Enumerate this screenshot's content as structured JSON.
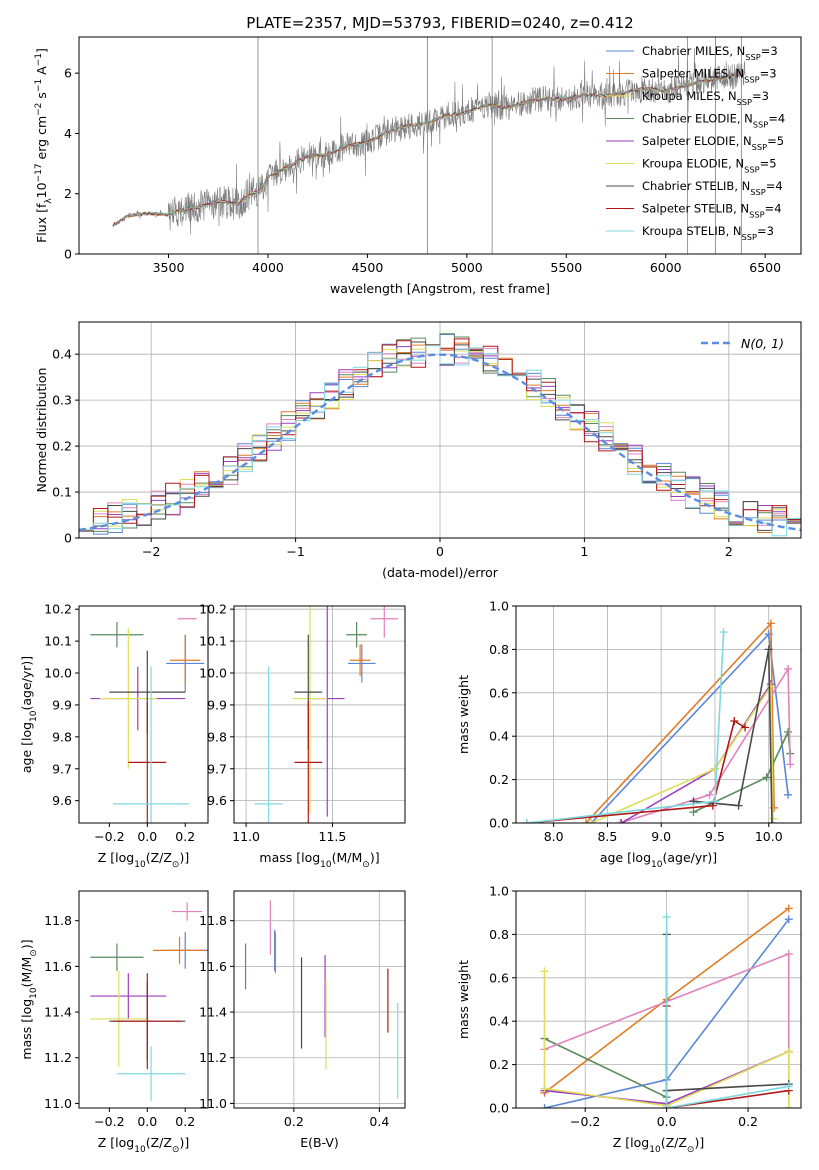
{
  "figure": {
    "title": "PLATE=2357, MJD=53793, FIBERID=0240, z=0.412"
  },
  "colors": {
    "c1": "#5b86d8",
    "c2": "#e07b26",
    "c3": "#5a8a5e",
    "c4": "#e083bd",
    "c5": "#9b3fbf",
    "c6": "#dede5a",
    "c7": "#4a4a4a",
    "c8": "#b01818",
    "c9": "#7fd8e0",
    "grid": "#b0b0b0",
    "spec": "#7f7f7f",
    "gauss": "#5b8ee0"
  },
  "chart_data": [
    {
      "id": "spectrum",
      "type": "line",
      "xlabel": "wavelength [Angstrom, rest frame]",
      "ylabel": "Flux [f$_\\lambda$10$^{-17}$ erg cm$^{-2}$ s$^{-1}$ A$^{-1}$]",
      "xlim": [
        3050,
        6680
      ],
      "ylim": [
        0,
        7.2
      ],
      "xticks": [
        3500,
        4000,
        4500,
        5000,
        5500,
        6000,
        6500
      ],
      "yticks": [
        0,
        2,
        4,
        6
      ],
      "grid": false,
      "legend_position": "upper right",
      "legend": [
        {
          "label": "Chabrier MILES, N$_{SSP}$=3",
          "color": "c1"
        },
        {
          "label": "Salpeter MILES, N$_{SSP}$=3",
          "color": "c2"
        },
        {
          "label": "Kroupa MILES, N$_{SSP}$=3",
          "color": "c6"
        },
        {
          "label": "Chabrier ELODIE, N$_{SSP}$=4",
          "color": "c3"
        },
        {
          "label": "Salpeter ELODIE, N$_{SSP}$=5",
          "color": "c5"
        },
        {
          "label": "Kroupa ELODIE, N$_{SSP}$=5",
          "color": "c6"
        },
        {
          "label": "Chabrier STELIB, N$_{SSP}$=4",
          "color": "c7"
        },
        {
          "label": "Salpeter STELIB, N$_{SSP}$=4",
          "color": "c8"
        },
        {
          "label": "Kroupa STELIB, N$_{SSP}$=3",
          "color": "c9"
        }
      ],
      "continuum": {
        "x": [
          3220,
          3300,
          3400,
          3500,
          3550,
          3650,
          3750,
          3850,
          3900,
          3960,
          4000,
          4100,
          4200,
          4300,
          4400,
          4500,
          4600,
          4700,
          4800,
          4900,
          5000,
          5100,
          5200,
          5300,
          5400,
          5500,
          5600,
          5700,
          5800,
          5900,
          6000,
          6100,
          6200,
          6300,
          6400
        ],
        "y": [
          0.95,
          1.28,
          1.35,
          1.3,
          1.45,
          1.55,
          1.75,
          1.65,
          1.95,
          2.1,
          2.55,
          2.9,
          3.25,
          3.3,
          3.6,
          3.7,
          4.05,
          4.25,
          4.35,
          4.6,
          4.7,
          4.95,
          4.85,
          5.05,
          5.15,
          5.15,
          5.3,
          5.25,
          5.35,
          5.5,
          5.4,
          5.6,
          5.75,
          5.85,
          6.0
        ]
      },
      "spikes": {
        "x": [
          3950,
          4802,
          5127,
          6250,
          6380,
          6110
        ],
        "y": [
          7.2,
          7.2,
          7.2,
          7.2,
          7.2,
          7.2
        ]
      }
    },
    {
      "id": "residual-histogram",
      "type": "histogram",
      "xlabel": "(data-model)/error",
      "ylabel": "Normed distribution",
      "xlim": [
        -2.5,
        2.5
      ],
      "ylim": [
        0,
        0.47
      ],
      "xticks": [
        -2,
        -1,
        0,
        1,
        2
      ],
      "yticks": [
        0.0,
        0.1,
        0.2,
        0.3,
        0.4
      ],
      "grid": true,
      "legend_position": "upper right",
      "legend": [
        {
          "label": "$\\mathcal{N}(0,1)$",
          "color": "gauss",
          "style": "dashed"
        }
      ],
      "bin_width": 0.1,
      "series": [
        {
          "color": "c1",
          "phase": 0.0
        },
        {
          "color": "c2",
          "phase": 0.7
        },
        {
          "color": "c3",
          "phase": 1.4
        },
        {
          "color": "c4",
          "phase": 2.1
        },
        {
          "color": "c5",
          "phase": 2.8
        },
        {
          "color": "c6",
          "phase": 3.5
        },
        {
          "color": "c7",
          "phase": 4.2
        },
        {
          "color": "c8",
          "phase": 4.9
        },
        {
          "color": "c9",
          "phase": 5.6
        }
      ]
    },
    {
      "id": "age-vs-metallicity",
      "type": "errorbar",
      "xlabel": "Z [log$_{10}$($Z/Z_\\odot$)]",
      "ylabel": "age  [log$_{10}$($age/yr$)]",
      "xlim": [
        -0.36,
        0.32
      ],
      "ylim": [
        9.53,
        10.21
      ],
      "xticks": [
        -0.2,
        0.0,
        0.2
      ],
      "xticklabels": [
        "−0.2",
        "0.0",
        "0.2"
      ],
      "yticks": [
        9.6,
        9.7,
        9.8,
        9.9,
        10.0,
        10.1,
        10.2
      ],
      "yticklabels": [
        "9.6",
        "9.7",
        "9.8",
        "9.9",
        "10.0",
        "10.1",
        "10.2"
      ],
      "grid": false,
      "points": [
        {
          "x": 0.2,
          "xerr": 0.1,
          "y": 10.03,
          "yerr": 0.09,
          "color": "c1"
        },
        {
          "x": 0.2,
          "xerr": 0.08,
          "y": 10.04,
          "yerr": 0.08,
          "color": "c2"
        },
        {
          "x": -0.16,
          "xerr": 0.14,
          "y": 10.12,
          "yerr": 0.04,
          "color": "c3"
        },
        {
          "x": 0.21,
          "xerr": 0.05,
          "y": 10.17,
          "yerr": 0.0,
          "color": "c4"
        },
        {
          "x": -0.05,
          "xerr": 0.25,
          "y": 9.92,
          "yerr": 0.1,
          "color": "c5"
        },
        {
          "x": -0.1,
          "xerr": 0.15,
          "y": 9.92,
          "yerr": 0.22,
          "color": "c6"
        },
        {
          "x": 0.0,
          "xerr": 0.2,
          "y": 9.94,
          "yerr": 0.13,
          "color": "c7"
        },
        {
          "x": 0.0,
          "xerr": 0.1,
          "y": 9.72,
          "yerr": 0.19,
          "color": "c8"
        },
        {
          "x": 0.02,
          "xerr": 0.2,
          "y": 9.59,
          "yerr": 0.43,
          "color": "c9"
        }
      ]
    },
    {
      "id": "age-vs-mass",
      "type": "errorbar",
      "xlabel": "mass [log$_{10}$($M/M_\\odot$)]",
      "xlim": [
        10.93,
        11.92
      ],
      "ylim": [
        9.53,
        10.21
      ],
      "xticks": [
        11.0,
        11.5
      ],
      "xticklabels": [
        "11.0",
        "11.5"
      ],
      "yticks": [
        9.6,
        9.7,
        9.8,
        9.9,
        10.0,
        10.1,
        10.2
      ],
      "yticklabels": [
        "9.6",
        "9.7",
        "9.8",
        "9.9",
        "10.0",
        "10.1",
        "10.2"
      ],
      "grid": true,
      "points": [
        {
          "x": 11.67,
          "xerr": 0.08,
          "y": 10.03,
          "yerr": 0.06,
          "color": "c1"
        },
        {
          "x": 11.66,
          "xerr": 0.06,
          "y": 10.04,
          "yerr": 0.05,
          "color": "c2"
        },
        {
          "x": 11.64,
          "xerr": 0.06,
          "y": 10.12,
          "yerr": 0.04,
          "color": "c3"
        },
        {
          "x": 11.8,
          "xerr": 0.08,
          "y": 10.17,
          "yerr": 0.06,
          "color": "c4"
        },
        {
          "x": 11.47,
          "xerr": 0.1,
          "y": 9.92,
          "yerr": 0.37,
          "color": "c5"
        },
        {
          "x": 11.37,
          "xerr": 0.1,
          "y": 9.92,
          "yerr": 0.36,
          "color": "c6"
        },
        {
          "x": 11.36,
          "xerr": 0.08,
          "y": 9.94,
          "yerr": 0.18,
          "color": "c7"
        },
        {
          "x": 11.36,
          "xerr": 0.08,
          "y": 9.72,
          "yerr": 0.19,
          "color": "c8"
        },
        {
          "x": 11.13,
          "xerr": 0.08,
          "y": 9.59,
          "yerr": 0.43,
          "color": "c9"
        }
      ]
    },
    {
      "id": "mass-weight-vs-age",
      "type": "line",
      "xlabel": "age  [log$_{10}$($age/yr$)]",
      "ylabel": "mass weight",
      "xlim": [
        7.65,
        10.3
      ],
      "ylim": [
        0,
        1
      ],
      "xticks": [
        8.0,
        8.5,
        9.0,
        9.5,
        10.0
      ],
      "xticklabels": [
        "8.0",
        "8.5",
        "9.0",
        "9.5",
        "10.0"
      ],
      "yticks": [
        0.0,
        0.2,
        0.4,
        0.6,
        0.8,
        1.0
      ],
      "yticklabels": [
        "0.0",
        "0.2",
        "0.4",
        "0.6",
        "0.8",
        "1.0"
      ],
      "grid": true,
      "series": [
        {
          "color": "c1",
          "x": [
            8.35,
            10.0,
            10.18
          ],
          "y": [
            0.0,
            0.87,
            0.13
          ]
        },
        {
          "color": "c2",
          "x": [
            8.3,
            10.02,
            10.05
          ],
          "y": [
            0.0,
            0.92,
            0.07
          ]
        },
        {
          "color": "c3",
          "x": [
            9.3,
            9.98,
            10.18,
            10.2
          ],
          "y": [
            0.05,
            0.21,
            0.42,
            0.32
          ]
        },
        {
          "color": "c4",
          "x": [
            8.62,
            9.45,
            10.18,
            10.2
          ],
          "y": [
            0.0,
            0.13,
            0.71,
            0.27
          ]
        },
        {
          "color": "c5",
          "x": [
            8.63,
            9.5,
            10.02
          ],
          "y": [
            0.0,
            0.25,
            0.64
          ]
        },
        {
          "color": "c6",
          "x": [
            8.35,
            9.5,
            10.02,
            10.04
          ],
          "y": [
            0.0,
            0.25,
            0.63,
            0.02
          ]
        },
        {
          "color": "c7",
          "x": [
            9.3,
            9.72,
            10.0,
            10.03
          ],
          "y": [
            0.1,
            0.08,
            0.8,
            0.0
          ]
        },
        {
          "color": "c8",
          "x": [
            7.75,
            9.48,
            9.68,
            9.78
          ],
          "y": [
            0.0,
            0.08,
            0.47,
            0.44
          ]
        },
        {
          "color": "c9",
          "x": [
            7.75,
            9.5,
            9.58
          ],
          "y": [
            0.0,
            0.1,
            0.88
          ]
        }
      ]
    },
    {
      "id": "mass-vs-metallicity",
      "type": "errorbar",
      "xlabel": "Z [log$_{10}$($Z/Z_\\odot$)]",
      "ylabel": "mass [log$_{10}$($M/M_\\odot$)]",
      "xlim": [
        -0.36,
        0.32
      ],
      "ylim": [
        10.98,
        11.93
      ],
      "xticks": [
        -0.2,
        0.0,
        0.2
      ],
      "xticklabels": [
        "−0.2",
        "0.0",
        "0.2"
      ],
      "yticks": [
        11.0,
        11.2,
        11.4,
        11.6,
        11.8
      ],
      "yticklabels": [
        "11.0",
        "11.2",
        "11.4",
        "11.6",
        "11.8"
      ],
      "grid": false,
      "points": [
        {
          "x": 0.2,
          "xerr": 0.12,
          "y": 11.67,
          "yerr": 0.08,
          "color": "c1"
        },
        {
          "x": 0.17,
          "xerr": 0.14,
          "y": 11.67,
          "yerr": 0.06,
          "color": "c2"
        },
        {
          "x": -0.16,
          "xerr": 0.14,
          "y": 11.64,
          "yerr": 0.06,
          "color": "c3"
        },
        {
          "x": 0.21,
          "xerr": 0.08,
          "y": 11.84,
          "yerr": 0.04,
          "color": "c4"
        },
        {
          "x": -0.1,
          "xerr": 0.2,
          "y": 11.47,
          "yerr": 0.1,
          "color": "c5"
        },
        {
          "x": -0.15,
          "xerr": 0.15,
          "y": 11.37,
          "yerr": 0.21,
          "color": "c6"
        },
        {
          "x": 0.0,
          "xerr": 0.2,
          "y": 11.36,
          "yerr": 0.17,
          "color": "c7"
        },
        {
          "x": 0.0,
          "xerr": 0.18,
          "y": 11.36,
          "yerr": 0.21,
          "color": "c8"
        },
        {
          "x": 0.02,
          "xerr": 0.18,
          "y": 11.13,
          "yerr": 0.12,
          "color": "c9"
        }
      ]
    },
    {
      "id": "mass-vs-extinction",
      "type": "errorbar",
      "xlabel": "E(B-V)",
      "xlim": [
        0.06,
        0.46
      ],
      "ylim": [
        10.98,
        11.93
      ],
      "xticks": [
        0.2,
        0.4
      ],
      "xticklabels": [
        "0.2",
        "0.4"
      ],
      "yticks": [
        11.0,
        11.2,
        11.4,
        11.6,
        11.8
      ],
      "yticklabels": [
        "11.0",
        "11.2",
        "11.4",
        "11.6",
        "11.8"
      ],
      "grid": true,
      "points": [
        {
          "x": 0.155,
          "xerr": 0,
          "y": 11.67,
          "yerr": 0.09,
          "color": "c1"
        },
        {
          "x": 0.157,
          "xerr": 0,
          "y": 11.66,
          "yerr": 0.09,
          "color": "c2"
        },
        {
          "x": 0.087,
          "xerr": 0,
          "y": 11.6,
          "yerr": 0.1,
          "color": "c3"
        },
        {
          "x": 0.145,
          "xerr": 0,
          "y": 11.77,
          "yerr": 0.12,
          "color": "c4"
        },
        {
          "x": 0.273,
          "xerr": 0,
          "y": 11.47,
          "yerr": 0.18,
          "color": "c5"
        },
        {
          "x": 0.275,
          "xerr": 0,
          "y": 11.35,
          "yerr": 0.2,
          "color": "c6"
        },
        {
          "x": 0.218,
          "xerr": 0,
          "y": 11.44,
          "yerr": 0.2,
          "color": "c7"
        },
        {
          "x": 0.42,
          "xerr": 0,
          "y": 11.45,
          "yerr": 0.14,
          "color": "c8"
        },
        {
          "x": 0.443,
          "xerr": 0,
          "y": 11.23,
          "yerr": 0.21,
          "color": "c9"
        }
      ]
    },
    {
      "id": "mass-weight-vs-metallicity",
      "type": "line",
      "xlabel": "Z [log$_{10}$($Z/Z_\\odot$)]",
      "ylabel": "mass weight",
      "xlim": [
        -0.37,
        0.33
      ],
      "ylim": [
        0,
        1
      ],
      "xticks": [
        -0.2,
        0.0,
        0.2
      ],
      "xticklabels": [
        "−0.2",
        "0.0",
        "0.2"
      ],
      "yticks": [
        0.0,
        0.2,
        0.4,
        0.6,
        0.8,
        1.0
      ],
      "yticklabels": [
        "0.0",
        "0.2",
        "0.4",
        "0.6",
        "0.8",
        "1.0"
      ],
      "grid": true,
      "series": [
        {
          "color": "c1",
          "x": [
            -0.3,
            0.0,
            0.3
          ],
          "y": [
            0.0,
            0.13,
            0.87
          ]
        },
        {
          "color": "c2",
          "x": [
            -0.3,
            0.0,
            0.3
          ],
          "y": [
            0.07,
            0.5,
            0.92
          ]
        },
        {
          "color": "c3",
          "x": [
            -0.3,
            0.0
          ],
          "y": [
            0.32,
            0.05
          ]
        },
        {
          "color": "c4",
          "x": [
            -0.3,
            0.3,
            0.3
          ],
          "y": [
            0.27,
            0.71,
            0.0
          ]
        },
        {
          "color": "c5",
          "x": [
            -0.3,
            0.0,
            0.3
          ],
          "y": [
            0.08,
            0.02,
            0.26
          ]
        },
        {
          "color": "c6",
          "x": [
            -0.3,
            -0.3,
            0.0,
            0.3,
            0.3
          ],
          "y": [
            0.63,
            0.09,
            0.01,
            0.26,
            0.0
          ]
        },
        {
          "color": "c7",
          "x": [
            0.0,
            0.0,
            0.3
          ],
          "y": [
            0.8,
            0.08,
            0.11
          ]
        },
        {
          "color": "c8",
          "x": [
            0.0,
            0.0,
            0.3
          ],
          "y": [
            0.47,
            0.0,
            0.08
          ]
        },
        {
          "color": "c9",
          "x": [
            0.0,
            0.0,
            0.3
          ],
          "y": [
            0.88,
            0.0,
            0.1
          ]
        }
      ]
    }
  ]
}
